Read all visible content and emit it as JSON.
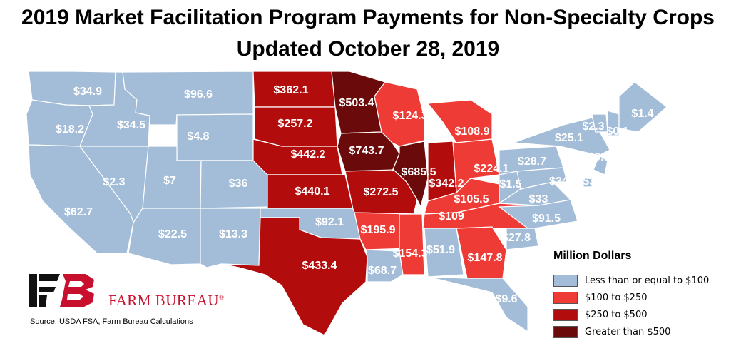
{
  "title_line1": "2019 Market Facilitation Program Payments for Non-Specialty Crops",
  "title_line2": "Updated October 28, 2019",
  "colors": {
    "low": "#a3bdd8",
    "mid": "#ef3b36",
    "high": "#b30c0c",
    "top": "#6b0a0a",
    "border": "#ffffff"
  },
  "legend": {
    "title": "Million Dollars",
    "items": [
      {
        "label": "Less than or equal to $100",
        "color": "#a3bdd8"
      },
      {
        "label": "$100 to $250",
        "color": "#ef3b36"
      },
      {
        "label": "$250 to $500",
        "color": "#b30c0c"
      },
      {
        "label": "Greater than $500",
        "color": "#6b0a0a"
      }
    ]
  },
  "map_values": [
    {
      "state": "WA",
      "label": "$34.9"
    },
    {
      "state": "OR",
      "label": "$18.2"
    },
    {
      "state": "ID",
      "label": "$34.5"
    },
    {
      "state": "MT",
      "label": "$96.6"
    },
    {
      "state": "WY",
      "label": "$4.8"
    },
    {
      "state": "NV",
      "label": "$2.3"
    },
    {
      "state": "UT",
      "label": "$7"
    },
    {
      "state": "CO",
      "label": "$36"
    },
    {
      "state": "CA",
      "label": "$62.7"
    },
    {
      "state": "AZ",
      "label": "$22.5"
    },
    {
      "state": "NM",
      "label": "$13.3"
    },
    {
      "state": "ND",
      "label": "$362.1"
    },
    {
      "state": "SD",
      "label": "$257.2"
    },
    {
      "state": "NE",
      "label": "$442.2"
    },
    {
      "state": "KS",
      "label": "$440.1"
    },
    {
      "state": "OK",
      "label": "$92.1"
    },
    {
      "state": "TX",
      "label": "$433.4"
    },
    {
      "state": "MN",
      "label": "$503.4"
    },
    {
      "state": "IA",
      "label": "$743.7"
    },
    {
      "state": "MO",
      "label": "$272.5"
    },
    {
      "state": "AR",
      "label": "$195.9"
    },
    {
      "state": "LA",
      "label": "$68.7"
    },
    {
      "state": "WI",
      "label": "$124.3"
    },
    {
      "state": "IL",
      "label": "$685.5"
    },
    {
      "state": "MS",
      "label": "$154.3"
    },
    {
      "state": "MI",
      "label": "$108.9"
    },
    {
      "state": "IN",
      "label": "$342.2"
    },
    {
      "state": "KY",
      "label": "$105.5"
    },
    {
      "state": "TN",
      "label": "$109"
    },
    {
      "state": "AL",
      "label": "$51.9"
    },
    {
      "state": "GA",
      "label": "$147.8"
    },
    {
      "state": "FL",
      "label": "$9.6"
    },
    {
      "state": "OH",
      "label": "$224.1"
    },
    {
      "state": "WV",
      "label": "$1.5"
    },
    {
      "state": "VA",
      "label": "$33"
    },
    {
      "state": "NC",
      "label": "$91.5"
    },
    {
      "state": "SC",
      "label": "$27.8"
    },
    {
      "state": "PA",
      "label": "$28.7"
    },
    {
      "state": "NY",
      "label": "$25.1"
    },
    {
      "state": "MD",
      "label": "$24.6"
    },
    {
      "state": "VT",
      "label": "$2.3"
    },
    {
      "state": "NH",
      "label": "$0.1"
    },
    {
      "state": "ME",
      "label": "$1.4"
    },
    {
      "state": "NJ",
      "label": "$9.3"
    },
    {
      "state": "DE",
      "label": "$3"
    }
  ],
  "logo_text": "FARM BUREAU",
  "logo_mark": "®",
  "source": "Source: USDA FSA, Farm Bureau Calculations"
}
